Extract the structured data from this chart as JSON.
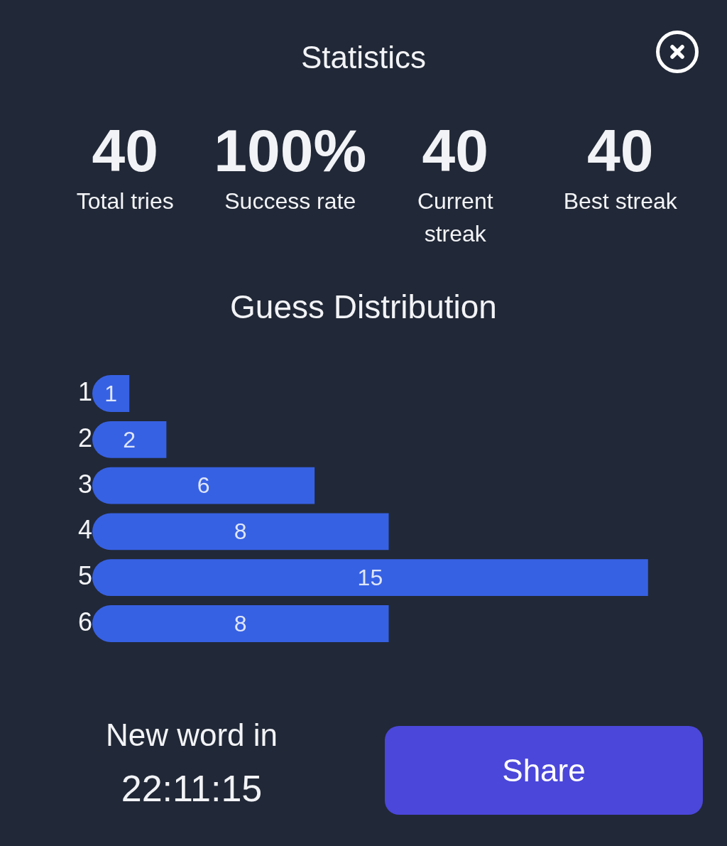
{
  "chart_data": [
    {
      "type": "other",
      "title": "Statistics",
      "categories": [
        "Total tries",
        "Success rate",
        "Current streak",
        "Best streak"
      ],
      "value_labels": [
        "40",
        "100%",
        "40",
        "40"
      ]
    },
    {
      "type": "bar",
      "orientation": "horizontal",
      "title": "Guess Distribution",
      "categories": [
        "1",
        "2",
        "3",
        "4",
        "5",
        "6"
      ],
      "values": [
        1,
        2,
        6,
        8,
        15,
        8
      ],
      "color": "#3761e3",
      "data_labels": true,
      "tick_labels": "y",
      "annotations": [
        "New word in",
        "22:11:15",
        "Share"
      ]
    }
  ]
}
